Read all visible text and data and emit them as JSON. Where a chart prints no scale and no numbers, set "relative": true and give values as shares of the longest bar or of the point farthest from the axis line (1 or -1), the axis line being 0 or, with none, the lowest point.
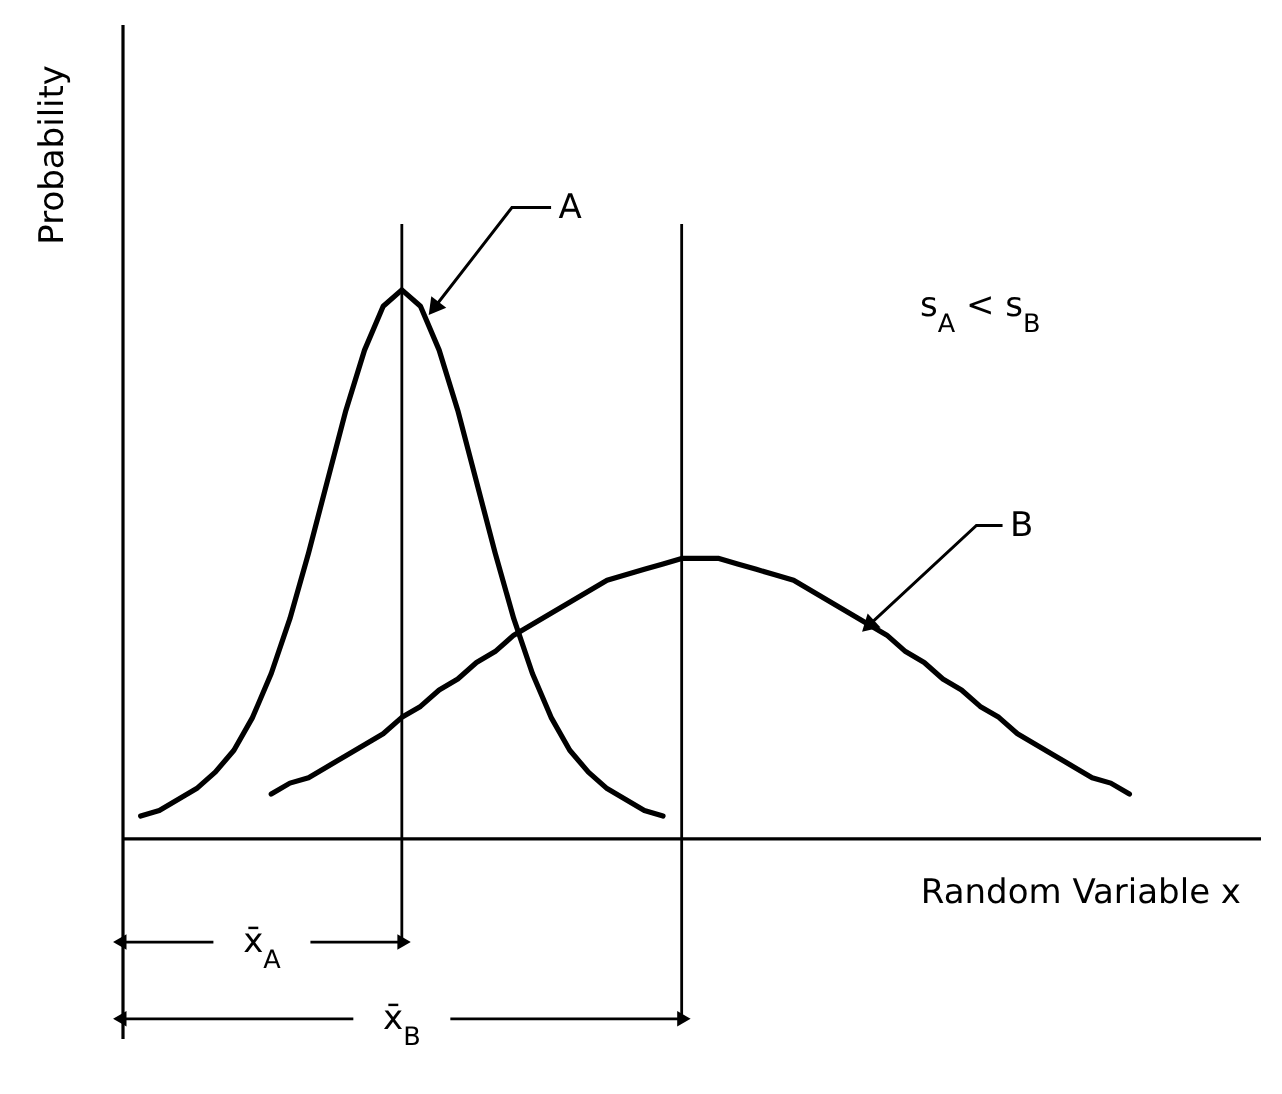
{
  "chart_data": {
    "type": "line",
    "relative": true,
    "xlabel": "Random Variable x",
    "ylabel": "Probability",
    "categories": [
      null,
      null,
      null,
      null,
      null,
      null,
      null,
      null,
      null,
      null,
      null,
      null,
      null,
      null,
      null,
      null,
      null,
      null,
      null,
      null,
      null,
      null,
      null,
      null,
      null,
      null,
      null,
      null,
      null,
      null,
      null,
      null,
      null,
      null,
      null,
      null,
      null,
      null,
      null,
      null,
      null,
      null,
      null,
      null,
      null,
      null,
      null,
      null,
      null,
      null,
      null,
      null,
      null,
      null,
      null,
      null,
      null,
      null,
      null,
      null,
      null,
      null
    ],
    "series": [
      {
        "name": "A",
        "color": "#000000",
        "values": [
          null,
          0.04,
          0.05,
          0.07,
          0.09,
          0.12,
          0.16,
          0.22,
          0.3,
          0.4,
          0.52,
          0.65,
          0.78,
          0.89,
          0.97,
          1.0,
          0.97,
          0.89,
          0.78,
          0.65,
          0.52,
          0.4,
          0.3,
          0.22,
          0.16,
          0.12,
          0.09,
          0.07,
          0.05,
          0.04,
          null,
          null,
          null,
          null,
          null,
          null,
          null,
          null,
          null,
          null,
          null,
          null,
          null,
          null,
          null,
          null,
          null,
          null,
          null,
          null,
          null,
          null,
          null,
          null,
          null,
          null,
          null,
          null,
          null,
          null,
          null,
          null
        ]
      },
      {
        "name": "B",
        "color": "#000000",
        "values": [
          null,
          null,
          null,
          null,
          null,
          null,
          null,
          null,
          0.08,
          0.1,
          0.11,
          0.13,
          0.15,
          0.17,
          0.19,
          0.22,
          0.24,
          0.27,
          0.29,
          0.32,
          0.34,
          0.37,
          0.39,
          0.41,
          0.43,
          0.45,
          0.47,
          0.48,
          0.49,
          0.5,
          0.51,
          0.51,
          0.51,
          0.5,
          0.49,
          0.48,
          0.47,
          0.45,
          0.43,
          0.41,
          0.39,
          0.37,
          0.34,
          0.32,
          0.29,
          0.27,
          0.24,
          0.22,
          0.19,
          0.17,
          0.15,
          0.13,
          0.11,
          0.1,
          0.08,
          null,
          null,
          null,
          null,
          null,
          null,
          null
        ]
      }
    ],
    "annotations": [
      "s$_{A}$ < s$_{B}$",
      "x̄$_{A}$",
      "x̄$_{B}$"
    ]
  }
}
